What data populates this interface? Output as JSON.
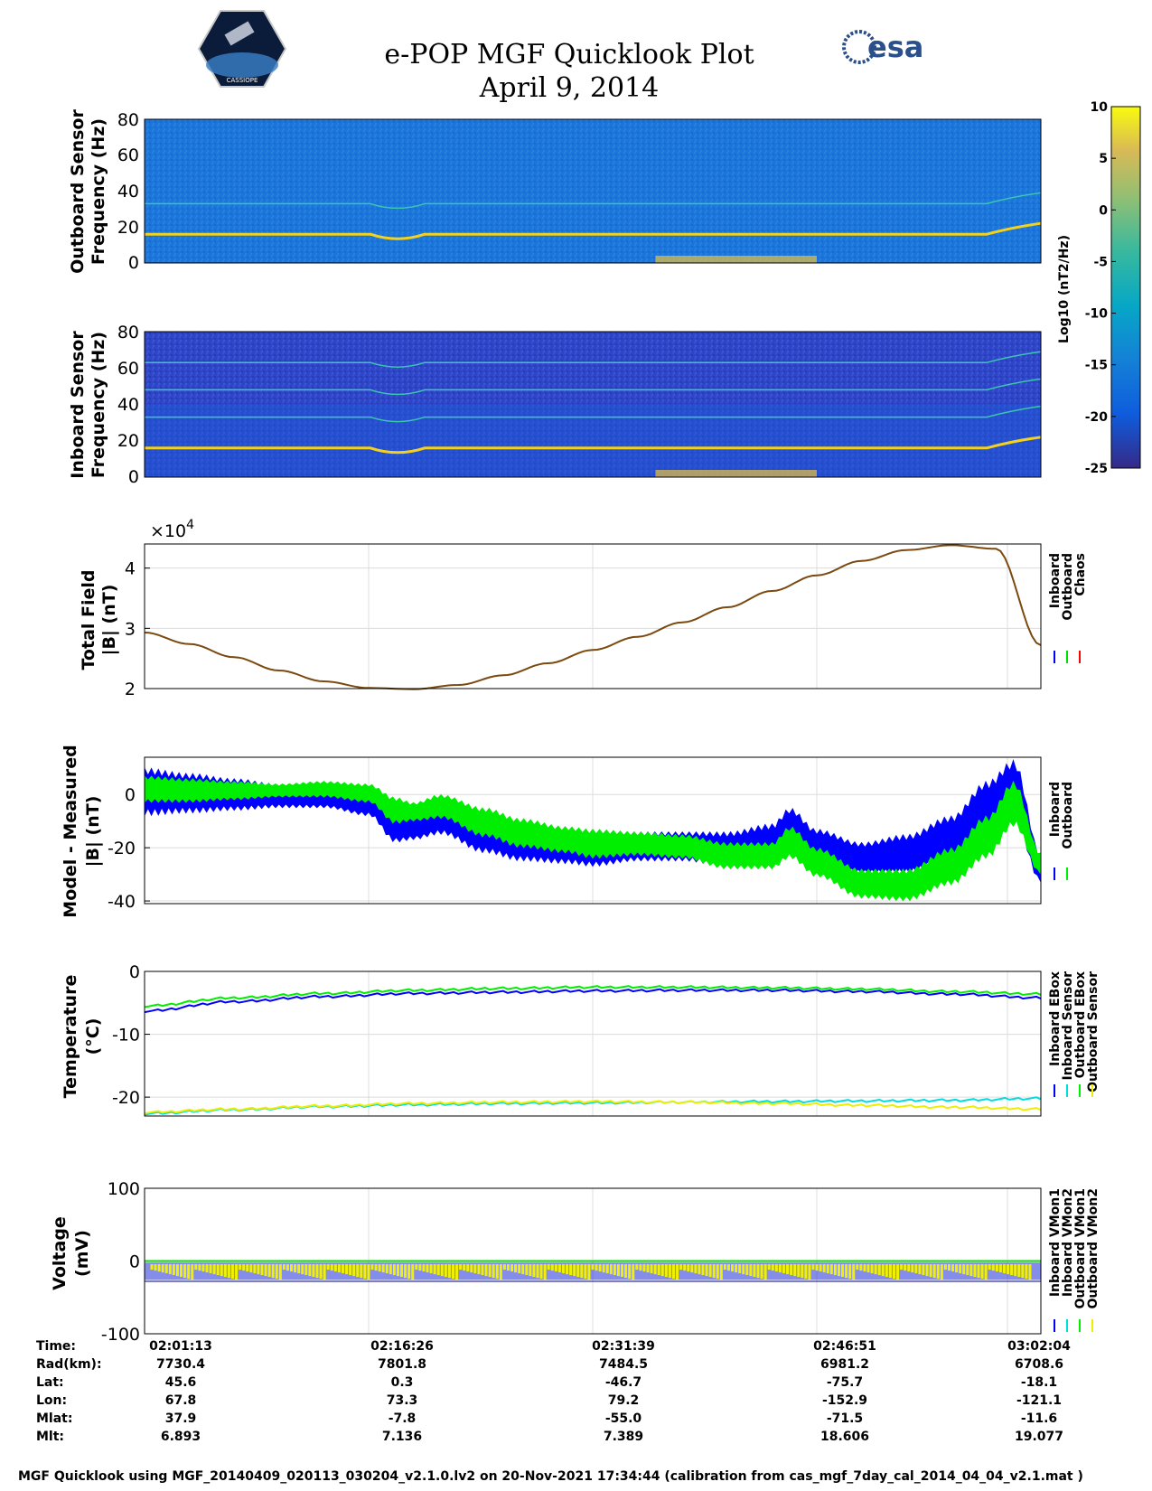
{
  "header": {
    "title_line1": "e-POP MGF Quicklook Plot",
    "title_line2": "April 9, 2014",
    "logo_left_text": "CASSIOPE",
    "logo_right_text": "esa"
  },
  "colorbar": {
    "label": "Log10 (nT2/Hz)",
    "ticks": [
      "10",
      "5",
      "0",
      "-5",
      "-10",
      "-15",
      "-20",
      "-25"
    ],
    "range": [
      -25,
      10
    ]
  },
  "chart_data": [
    {
      "type": "heatmap",
      "name": "outboard_spectrogram",
      "ylabel_line1": "Outboard Sensor",
      "ylabel_line2": "Frequency (Hz)",
      "ylim": [
        0,
        80
      ],
      "yticks": [
        "80",
        "60",
        "40",
        "20",
        "0"
      ],
      "lines_hz": [
        16,
        33
      ]
    },
    {
      "type": "heatmap",
      "name": "inboard_spectrogram",
      "ylabel_line1": "Inboard Sensor",
      "ylabel_line2": "Frequency (Hz)",
      "ylim": [
        0,
        80
      ],
      "yticks": [
        "80",
        "60",
        "40",
        "20",
        "0"
      ],
      "lines_hz": [
        16,
        33,
        48,
        63
      ]
    },
    {
      "type": "line",
      "name": "total_field",
      "ylabel_line1": "Total Field",
      "ylabel_line2": "|B| (nT)",
      "multiplier": "×10",
      "multiplier_exp": "4",
      "ylim": [
        2,
        4.4
      ],
      "yticks": [
        "4",
        "3",
        "2"
      ],
      "legend": [
        "Inboard",
        "Outboard",
        "Chaos"
      ],
      "legend_colors": [
        "#0000ff",
        "#00dd00",
        "#ff0000"
      ],
      "x": [
        0,
        0.05,
        0.1,
        0.15,
        0.2,
        0.25,
        0.3,
        0.35,
        0.4,
        0.45,
        0.5,
        0.55,
        0.6,
        0.65,
        0.7,
        0.75,
        0.8,
        0.85,
        0.9,
        0.95,
        1.0
      ],
      "y": [
        2.93,
        2.74,
        2.52,
        2.3,
        2.12,
        2.01,
        1.99,
        2.06,
        2.22,
        2.42,
        2.64,
        2.86,
        3.1,
        3.35,
        3.62,
        3.88,
        4.12,
        4.3,
        4.38,
        4.32,
        2.72
      ]
    },
    {
      "type": "line",
      "name": "model_minus_measured",
      "ylabel_line1": "Model - Measured",
      "ylabel_line2": "|B| (nT)",
      "ylim": [
        -41,
        14
      ],
      "yticks": [
        "0",
        "-20",
        "-40"
      ],
      "legend": [
        "Inboard",
        "Outboard"
      ],
      "legend_colors": [
        "#0000ff",
        "#00ee00"
      ],
      "series": [
        {
          "name": "Inboard",
          "color": "#0000ff",
          "x": [
            0,
            0.05,
            0.1,
            0.15,
            0.2,
            0.25,
            0.28,
            0.3,
            0.33,
            0.38,
            0.42,
            0.47,
            0.5,
            0.55,
            0.6,
            0.65,
            0.7,
            0.72,
            0.75,
            0.8,
            0.85,
            0.9,
            0.94,
            0.97,
            1.0
          ],
          "lo": [
            -8,
            -7,
            -6,
            -5,
            -5,
            -8,
            -18,
            -17,
            -15,
            -22,
            -25,
            -26,
            -27,
            -25,
            -25,
            -27,
            -26,
            -20,
            -26,
            -30,
            -30,
            -25,
            -15,
            -10,
            -33
          ],
          "hi": [
            10,
            8,
            6,
            4,
            3,
            1,
            -6,
            -7,
            -3,
            -8,
            -11,
            -13,
            -14,
            -14,
            -14,
            -14,
            -11,
            -5,
            -13,
            -18,
            -15,
            -8,
            5,
            13,
            -22
          ]
        },
        {
          "name": "Outboard",
          "color": "#00ee00",
          "x": [
            0,
            0.05,
            0.1,
            0.15,
            0.2,
            0.25,
            0.28,
            0.3,
            0.33,
            0.38,
            0.42,
            0.47,
            0.5,
            0.55,
            0.6,
            0.65,
            0.7,
            0.72,
            0.75,
            0.8,
            0.85,
            0.9,
            0.94,
            0.97,
            1.0
          ],
          "lo": [
            -3,
            -3,
            -2,
            -1,
            -1,
            -3,
            -11,
            -10,
            -9,
            -16,
            -20,
            -22,
            -24,
            -23,
            -24,
            -28,
            -28,
            -24,
            -31,
            -39,
            -40,
            -34,
            -24,
            -12,
            -30
          ],
          "hi": [
            7,
            6,
            5,
            4,
            5,
            4,
            -1,
            -3,
            0,
            -5,
            -9,
            -12,
            -13,
            -14,
            -15,
            -18,
            -18,
            -12,
            -20,
            -28,
            -28,
            -20,
            -8,
            5,
            -22
          ]
        }
      ]
    },
    {
      "type": "line",
      "name": "temperature",
      "ylabel_line1": "Temperature",
      "ylabel_line2": "(°C)",
      "ylim": [
        -23,
        0
      ],
      "yticks": [
        "0",
        "-10",
        "-20"
      ],
      "legend": [
        "Inboard EBox",
        "Inboard Sensor",
        "Outboard EBox",
        "Outboard Sensor"
      ],
      "legend_colors": [
        "#0000ff",
        "#00dddd",
        "#00ee00",
        "#eeee00"
      ],
      "series": [
        {
          "name": "Inboard EBox",
          "color": "#0000ff",
          "x": [
            0,
            0.1,
            0.2,
            0.3,
            0.4,
            0.5,
            0.6,
            0.7,
            0.8,
            0.9,
            1.0
          ],
          "y": [
            -6.3,
            -4.8,
            -4.0,
            -3.5,
            -3.3,
            -3.1,
            -3.0,
            -3.0,
            -3.2,
            -3.6,
            -4.2
          ]
        },
        {
          "name": "Outboard EBox",
          "color": "#00ee00",
          "x": [
            0,
            0.1,
            0.2,
            0.3,
            0.4,
            0.5,
            0.6,
            0.7,
            0.8,
            0.9,
            1.0
          ],
          "y": [
            -5.5,
            -4.2,
            -3.5,
            -3.0,
            -2.7,
            -2.5,
            -2.5,
            -2.6,
            -2.8,
            -3.2,
            -3.6
          ]
        },
        {
          "name": "Inboard Sensor",
          "color": "#00dddd",
          "x": [
            0,
            0.1,
            0.2,
            0.3,
            0.4,
            0.5,
            0.6,
            0.7,
            0.8,
            0.9,
            1.0
          ],
          "y": [
            -22.6,
            -22.0,
            -21.5,
            -21.2,
            -21.0,
            -20.9,
            -20.8,
            -20.7,
            -20.6,
            -20.5,
            -20.2
          ]
        },
        {
          "name": "Outboard Sensor",
          "color": "#eeee00",
          "x": [
            0,
            0.1,
            0.2,
            0.3,
            0.4,
            0.5,
            0.6,
            0.7,
            0.8,
            0.9,
            1.0
          ],
          "y": [
            -22.4,
            -21.9,
            -21.4,
            -21.0,
            -20.8,
            -20.7,
            -20.8,
            -21.0,
            -21.3,
            -21.6,
            -21.9
          ]
        }
      ]
    },
    {
      "type": "line",
      "name": "voltage",
      "ylabel_line1": "Voltage",
      "ylabel_line2": "(mV)",
      "ylim": [
        -100,
        100
      ],
      "yticks": [
        "100",
        "0",
        "-100"
      ],
      "legend": [
        "Inboard VMon1",
        "Inboard VMon2",
        "Outboard VMon1",
        "Outboard VMon2"
      ],
      "legend_colors": [
        "#0000ff",
        "#00dddd",
        "#00ee00",
        "#eeee00"
      ],
      "levels": {
        "vmon1_upper": 0,
        "vmon1_lower": -28,
        "band_top": -2,
        "band_bottom": -26
      }
    }
  ],
  "xaxis": {
    "labels": [
      "02:01:13",
      "02:16:26",
      "02:31:39",
      "02:46:51",
      "03:02:04"
    ]
  },
  "ephemeris_table": {
    "row_labels": [
      "Time:",
      "Rad(km):",
      "Lat:",
      "Lon:",
      "Mlat:",
      "Mlt:"
    ],
    "rows": [
      [
        "02:01:13",
        "02:16:26",
        "02:31:39",
        "02:46:51",
        "03:02:04"
      ],
      [
        "7730.4",
        "7801.8",
        "7484.5",
        "6981.2",
        "6708.6"
      ],
      [
        "45.6",
        "0.3",
        "-46.7",
        "-75.7",
        "-18.1"
      ],
      [
        "67.8",
        "73.3",
        "79.2",
        "-152.9",
        "-121.1"
      ],
      [
        "37.9",
        "-7.8",
        "-55.0",
        "-71.5",
        "-11.6"
      ],
      [
        "6.893",
        "7.136",
        "7.389",
        "18.606",
        "19.077"
      ]
    ]
  },
  "footer": {
    "text": "MGF Quicklook using MGF_20140409_020113_030204_v2.1.0.lv2 on 20-Nov-2021 17:34:44 (calibration from cas_mgf_7day_cal_2014_04_04_v2.1.mat )"
  }
}
